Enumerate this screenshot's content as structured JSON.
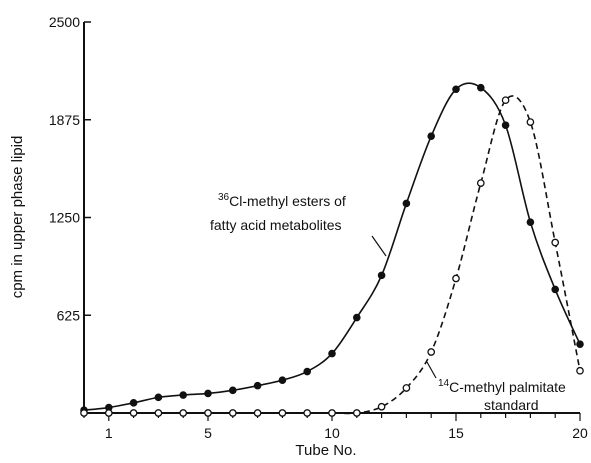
{
  "chart_data": {
    "type": "line",
    "title": "",
    "xlabel": "Tube No.",
    "ylabel": "cpm in upper phase lipid",
    "xlim": [
      0,
      20
    ],
    "ylim": [
      0,
      2500
    ],
    "x_ticks": [
      1,
      5,
      10,
      15,
      20
    ],
    "x_tick_labels": [
      "1",
      "5",
      "10",
      "15",
      "20"
    ],
    "y_ticks": [
      625,
      1250,
      1875,
      2500
    ],
    "y_tick_labels": [
      "625",
      "1250",
      "1875",
      "2500"
    ],
    "grid": false,
    "series": [
      {
        "marker": "filled-circle",
        "line": "solid",
        "color": "#111111",
        "x": [
          0,
          1,
          2,
          3,
          4,
          5,
          6,
          7,
          8,
          9,
          10,
          11,
          12,
          13,
          14,
          15,
          16,
          17,
          18,
          19,
          20
        ],
        "y": [
          18,
          35,
          65,
          100,
          115,
          125,
          145,
          175,
          210,
          265,
          380,
          610,
          880,
          1340,
          1770,
          2070,
          2080,
          1840,
          1220,
          790,
          440
        ]
      },
      {
        "marker": "open-circle",
        "line": "dashed",
        "color": "#111111",
        "x": [
          0,
          1,
          2,
          3,
          4,
          5,
          6,
          7,
          8,
          9,
          10,
          11,
          12,
          13,
          14,
          15,
          16,
          17,
          18,
          19,
          20
        ],
        "y": [
          0,
          0,
          0,
          0,
          0,
          0,
          0,
          0,
          0,
          0,
          0,
          0,
          40,
          160,
          390,
          860,
          1470,
          2000,
          1860,
          1090,
          270
        ]
      }
    ],
    "annotations": [
      {
        "target_series": 0,
        "lines": [
          "Cl-methyl esters of",
          "fatty acid metabolites"
        ],
        "superscript": "36"
      },
      {
        "target_series": 1,
        "lines": [
          "C-methyl palmitate",
          "standard"
        ],
        "superscript": "14"
      }
    ]
  }
}
